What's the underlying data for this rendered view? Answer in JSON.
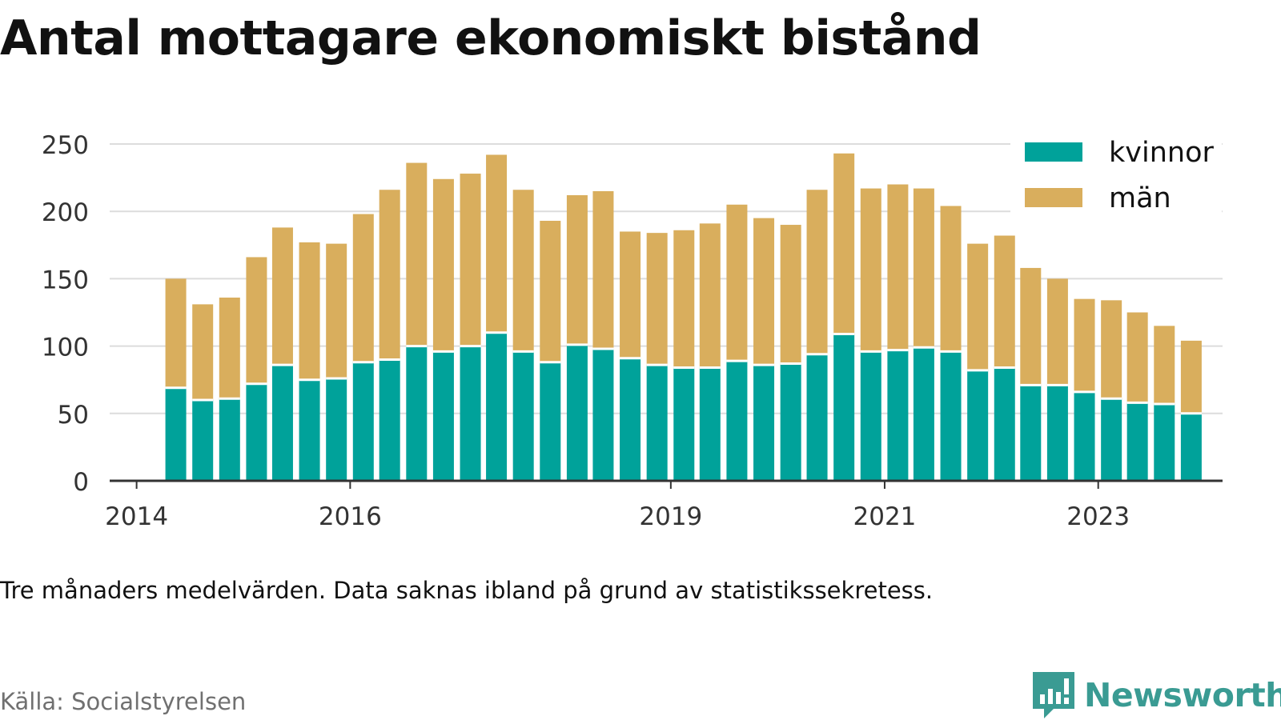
{
  "title": "Antal mottagare ekonomiskt bistånd",
  "note": "Tre månaders medelvärden. Data saknas ibland på grund av statistikssekretess.",
  "source": "Källa: Socialstyrelsen",
  "brand": "Newsworthy",
  "colors": {
    "women": "#00a29a",
    "men": "#d9ae5d",
    "grid": "#dcdcdc",
    "axis": "#333333",
    "brand": "#3a9b93"
  },
  "chart_data": {
    "type": "bar",
    "stacked": true,
    "title": "Antal mottagare ekonomiskt bistånd",
    "ylim": [
      0,
      250
    ],
    "yticks": [
      0,
      50,
      100,
      150,
      200,
      250
    ],
    "xlim": [
      "2013-10-01",
      "2024-03-01"
    ],
    "xticks": [
      {
        "label": "2014",
        "date": "2014-01-01"
      },
      {
        "label": "2016",
        "date": "2016-01-01"
      },
      {
        "label": "2019",
        "date": "2019-01-01"
      },
      {
        "label": "2021",
        "date": "2021-01-01"
      },
      {
        "label": "2023",
        "date": "2023-01-01"
      }
    ],
    "grid": true,
    "legend": "top-right",
    "x": [
      "2014-05-15",
      "2014-08-15",
      "2014-11-15",
      "2015-02-15",
      "2015-05-15",
      "2015-08-15",
      "2015-11-15",
      "2016-02-15",
      "2016-05-15",
      "2016-08-15",
      "2016-11-15",
      "2017-02-15",
      "2017-05-15",
      "2017-08-15",
      "2017-11-15",
      "2018-02-15",
      "2018-05-15",
      "2018-08-15",
      "2018-11-15",
      "2019-02-15",
      "2019-05-15",
      "2019-08-15",
      "2019-11-15",
      "2020-02-15",
      "2020-05-15",
      "2020-08-15",
      "2020-11-15",
      "2021-02-15",
      "2021-05-15",
      "2021-08-15",
      "2021-11-15",
      "2022-02-15",
      "2022-05-15",
      "2022-08-15",
      "2022-11-15",
      "2023-02-15",
      "2023-05-15",
      "2023-08-15",
      "2023-11-15"
    ],
    "series": [
      {
        "name": "kvinnor",
        "values": [
          69,
          60,
          61,
          72,
          86,
          75,
          76,
          88,
          90,
          100,
          96,
          100,
          110,
          96,
          88,
          101,
          98,
          91,
          86,
          84,
          84,
          89,
          86,
          87,
          94,
          109,
          96,
          97,
          99,
          96,
          82,
          84,
          71,
          71,
          66,
          61,
          58,
          57,
          50
        ]
      },
      {
        "name": "män",
        "values": [
          81,
          71,
          75,
          94,
          102,
          102,
          100,
          110,
          126,
          136,
          128,
          128,
          132,
          120,
          105,
          111,
          117,
          94,
          98,
          102,
          107,
          116,
          109,
          103,
          122,
          134,
          121,
          123,
          118,
          108,
          94,
          98,
          87,
          79,
          69,
          73,
          67,
          58,
          54
        ]
      }
    ]
  }
}
